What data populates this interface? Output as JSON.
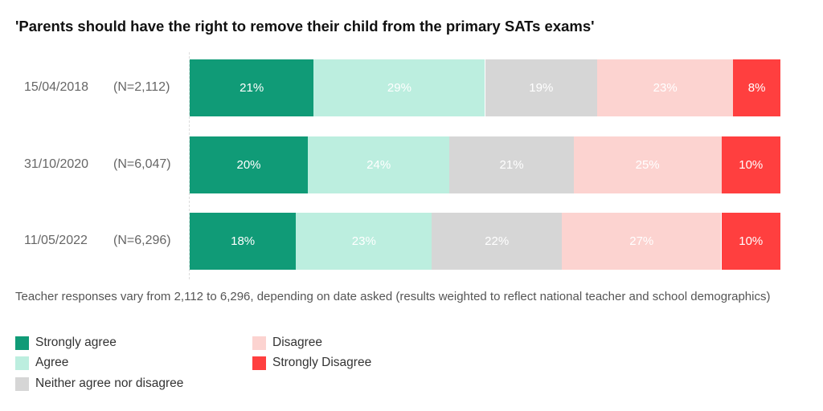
{
  "chart_data": {
    "type": "bar",
    "orientation": "horizontal",
    "stacked": true,
    "title": "'Parents should have the right to remove their child from the primary SATs exams'",
    "categories": [
      {
        "date": "15/04/2018",
        "n": "(N=2,112)"
      },
      {
        "date": "31/10/2020",
        "n": "(N=6,047)"
      },
      {
        "date": "11/05/2022",
        "n": "(N=6,296)"
      }
    ],
    "series": [
      {
        "name": "Strongly agree",
        "color": "#109B77",
        "values": [
          21,
          20,
          18
        ]
      },
      {
        "name": "Agree",
        "color": "#BCEEDF",
        "values": [
          29,
          24,
          23
        ]
      },
      {
        "name": "Neither agree nor disagree",
        "color": "#D6D6D6",
        "values": [
          19,
          21,
          22
        ]
      },
      {
        "name": "Disagree",
        "color": "#FCD3D0",
        "values": [
          23,
          25,
          27
        ]
      },
      {
        "name": "Strongly Disagree",
        "color": "#FF3F3F",
        "values": [
          8,
          10,
          10
        ]
      }
    ],
    "value_suffix": "%",
    "xlim": [
      0,
      100
    ],
    "grid": false,
    "legend_position": "bottom-left"
  },
  "note": "Teacher responses vary from 2,112 to 6,296, depending on date asked (results weighted to reflect national teacher and school demographics)"
}
